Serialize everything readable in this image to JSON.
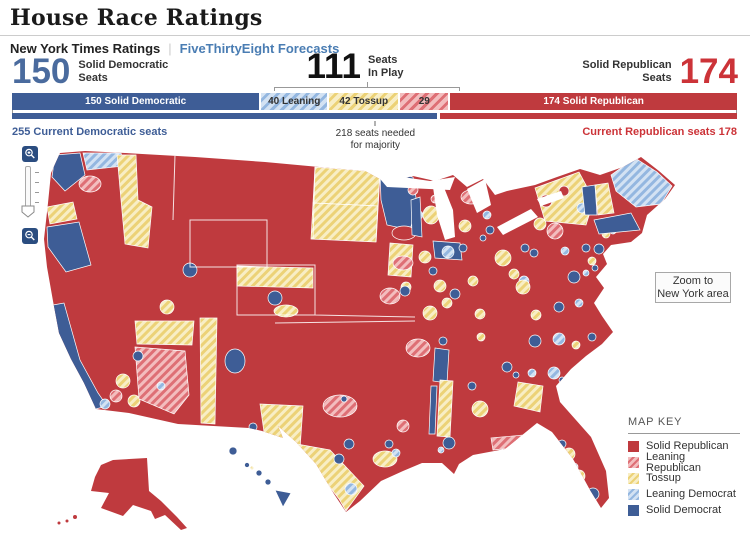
{
  "page": {
    "title": "House Race Ratings"
  },
  "tabs": {
    "active": "New York Times Ratings",
    "separator": "|",
    "link": "FiveThirtyEight Forecasts"
  },
  "stats": {
    "dem": {
      "value": "150",
      "label_line1": "Solid Democratic",
      "label_line2": "Seats"
    },
    "inplay": {
      "value": "111",
      "label_line1": "Seats",
      "label_line2": "In Play"
    },
    "rep": {
      "value": "174",
      "label_line1": "Solid Republican",
      "label_line2": "Seats"
    }
  },
  "seat_bar": {
    "total_seats": 435,
    "segments": [
      {
        "key": "solid-dem",
        "style": "solid-dem",
        "seats": 150,
        "label": "150 Solid Democratic"
      },
      {
        "key": "lean-dem",
        "style": "lean-dem",
        "seats": 40,
        "label": "40 Leaning"
      },
      {
        "key": "tossup",
        "style": "tossup",
        "seats": 42,
        "label": "42 Tossup"
      },
      {
        "key": "lean-rep",
        "style": "lean-rep",
        "seats": 29,
        "label": "29"
      },
      {
        "key": "solid-rep",
        "style": "solid-rep",
        "seats": 174,
        "label": "174 Solid Republican"
      }
    ]
  },
  "current_bar": {
    "dem_seats": 255,
    "rep_seats": 178,
    "dem_label": "255 Current Democratic seats",
    "rep_label": "Current Republican seats 178",
    "majority_seats": 218,
    "majority_line1": "218 seats needed",
    "majority_line2": "for majority"
  },
  "map": {
    "zoom_button_line1": "Zoom to",
    "zoom_button_line2": "New York area",
    "icons": {
      "zoom_in": "magnifier-plus-icon",
      "zoom_out": "magnifier-minus-icon"
    }
  },
  "map_key": {
    "title": "MAP KEY",
    "entries": [
      {
        "style": "solid-rep",
        "label": "Solid Republican"
      },
      {
        "style": "lean-rep",
        "label": "Leaning Republican"
      },
      {
        "style": "tossup",
        "label": "Tossup"
      },
      {
        "style": "lean-dem",
        "label": "Leaning Democrat"
      },
      {
        "style": "solid-dem",
        "label": "Solid Democrat"
      }
    ]
  },
  "colors": {
    "solid_republican": "#bf3a3e",
    "solid_democrat": "#3e5d96",
    "leaning_republican_base": "#f3bdbe",
    "leaning_republican_stripe": "#de6f75",
    "tossup_base": "#f8eec5",
    "tossup_stripe": "#ecd277",
    "leaning_democrat_base": "#d3e2f3",
    "leaning_democrat_stripe": "#94b7e0",
    "dem_number": "#4a6b9e",
    "rep_number": "#cc3338",
    "link_blue": "#4a7db3"
  }
}
